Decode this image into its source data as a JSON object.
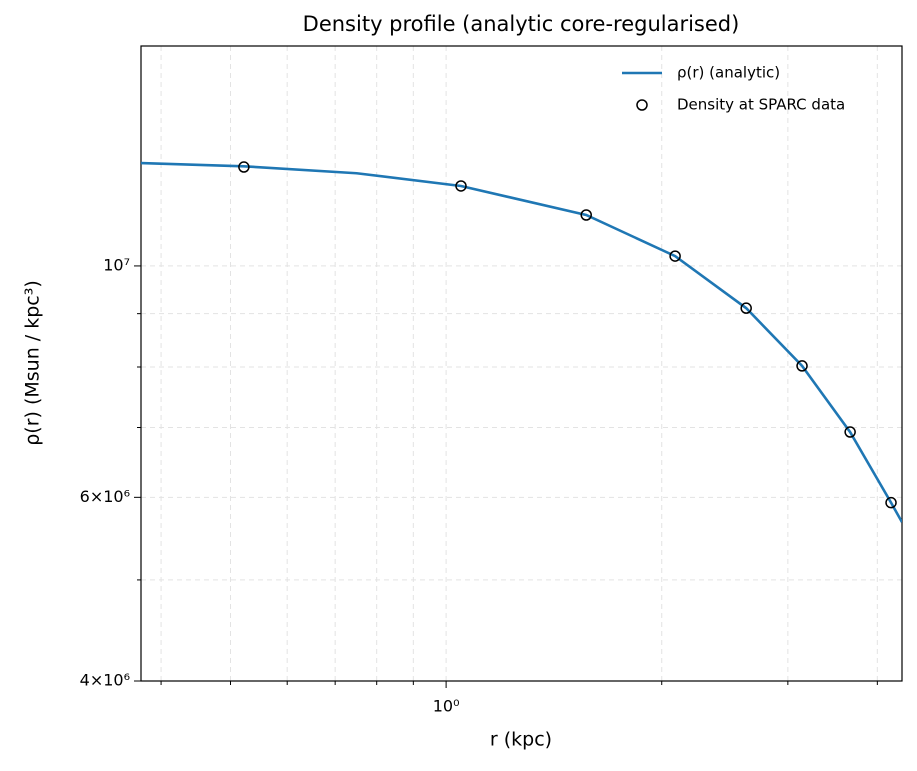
{
  "chart_data": {
    "type": "line",
    "title": "Density profile (analytic core-regularised)",
    "xlabel": "r (kpc)",
    "ylabel": "ρ(r) (Msun / kpc³)",
    "xscale": "log",
    "yscale": "log",
    "xlim": [
      0.375,
      4.33
    ],
    "ylim": [
      4000000,
      16250000
    ],
    "xticks": [
      {
        "value": 1,
        "label": "10⁰"
      }
    ],
    "xminor": [
      0.4,
      0.5,
      0.6,
      0.7,
      0.8,
      0.9,
      2,
      3,
      4
    ],
    "yticks": [
      {
        "value": 4000000,
        "label": "4×10⁶"
      },
      {
        "value": 6000000,
        "label": "6×10⁶"
      },
      {
        "value": 10000000,
        "label": "10⁷"
      }
    ],
    "yminor": [
      5000000,
      7000000,
      8000000,
      9000000
    ],
    "grid": true,
    "legend": "upper right",
    "series": [
      {
        "name": "ρ(r) (analytic)",
        "kind": "line",
        "color": "#1f77b4",
        "x": [
          0.375,
          0.522,
          0.75,
          1.049,
          1.569,
          2.088,
          2.624,
          3.14,
          3.665,
          4.18,
          4.33
        ],
        "values": [
          12550000,
          12460000,
          12270000,
          11930000,
          11190000,
          10220000,
          9110000,
          8020000,
          6930000,
          5930000,
          5680000
        ]
      },
      {
        "name": "Density at SPARC data",
        "kind": "scatter",
        "color": "#000000",
        "x": [
          0.522,
          1.049,
          1.569,
          2.088,
          2.624,
          3.14,
          3.665,
          4.18
        ],
        "values": [
          12440000,
          11930000,
          11190000,
          10220000,
          9110000,
          8020000,
          6930000,
          5930000
        ]
      }
    ]
  }
}
